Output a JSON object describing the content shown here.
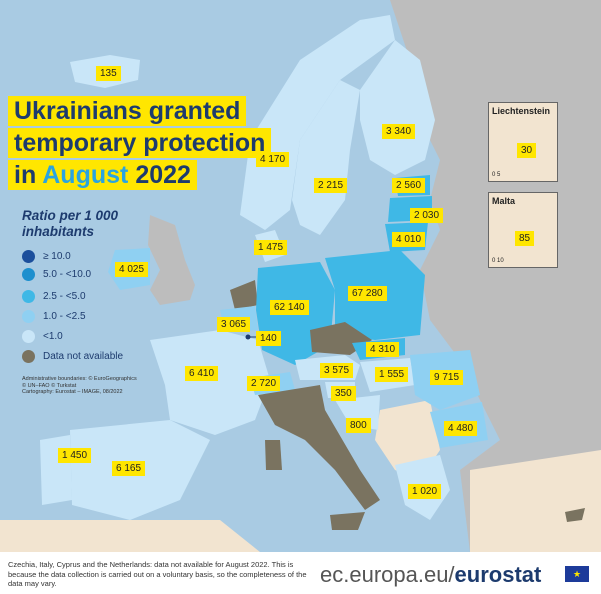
{
  "title": {
    "line1": "Ukrainians granted",
    "line2": "temporary protection",
    "line3_prefix": "in",
    "line3_highlight": "August",
    "line3_suffix": "2022"
  },
  "legend": {
    "title": "Ratio per 1 000 inhabitants",
    "items": [
      {
        "label": "≥ 10.0",
        "color": "#1c4f9c"
      },
      {
        "label": "5.0 - <10.0",
        "color": "#1d8fce"
      },
      {
        "label": "2.5 - <5.0",
        "color": "#3fb8e6"
      },
      {
        "label": "1.0 - <2.5",
        "color": "#8fd0f2"
      },
      {
        "label": "<1.0",
        "color": "#c9e6f8"
      },
      {
        "label": "Data not available",
        "color": "#7a7360"
      }
    ]
  },
  "credits": {
    "line1": "Administrative boundaries: © EuroGeographics",
    "line2": "© UN–FAO © Turkstat",
    "line3": "Cartography: Eurostat – IMAGE, 08/2022"
  },
  "map_labels": {
    "iceland": "135",
    "norway": "4 170",
    "sweden": "2 215",
    "finland": "3 340",
    "estonia": "2 560",
    "latvia": "2 030",
    "lithuania": "4 010",
    "denmark": "1 475",
    "ireland": "4 025",
    "belgium": "3 065",
    "luxembourg": "140",
    "germany": "62 140",
    "poland": "67 280",
    "slovakia": "4 310",
    "austria": "3 575",
    "hungary": "1 555",
    "romania": "9 715",
    "slovenia": "350",
    "croatia": "800",
    "bulgaria": "4 480",
    "greece": "1 020",
    "france": "6 410",
    "switzerland": "2 720",
    "portugal": "1 450",
    "spain": "6 165"
  },
  "insets": {
    "liechtenstein": {
      "name": "Liechtenstein",
      "value": "30",
      "scale": "0  5"
    },
    "malta": {
      "name": "Malta",
      "value": "85",
      "scale": "0  10"
    }
  },
  "footer": {
    "note": "Czechia, Italy, Cyprus and the Netherlands: data not available for August 2022. This is because the data collection is carried out on a voluntary basis, so the completeness of the data may vary.",
    "domain": "ec.europa.eu/",
    "brand": "eurostat"
  },
  "colors": {
    "sea": "#a9cbe3",
    "non_eu_land": "#f2e4d0",
    "neighbour_land": "#bdbdbd",
    "na": "#7a7360",
    "title_bg": "#ffe600"
  }
}
